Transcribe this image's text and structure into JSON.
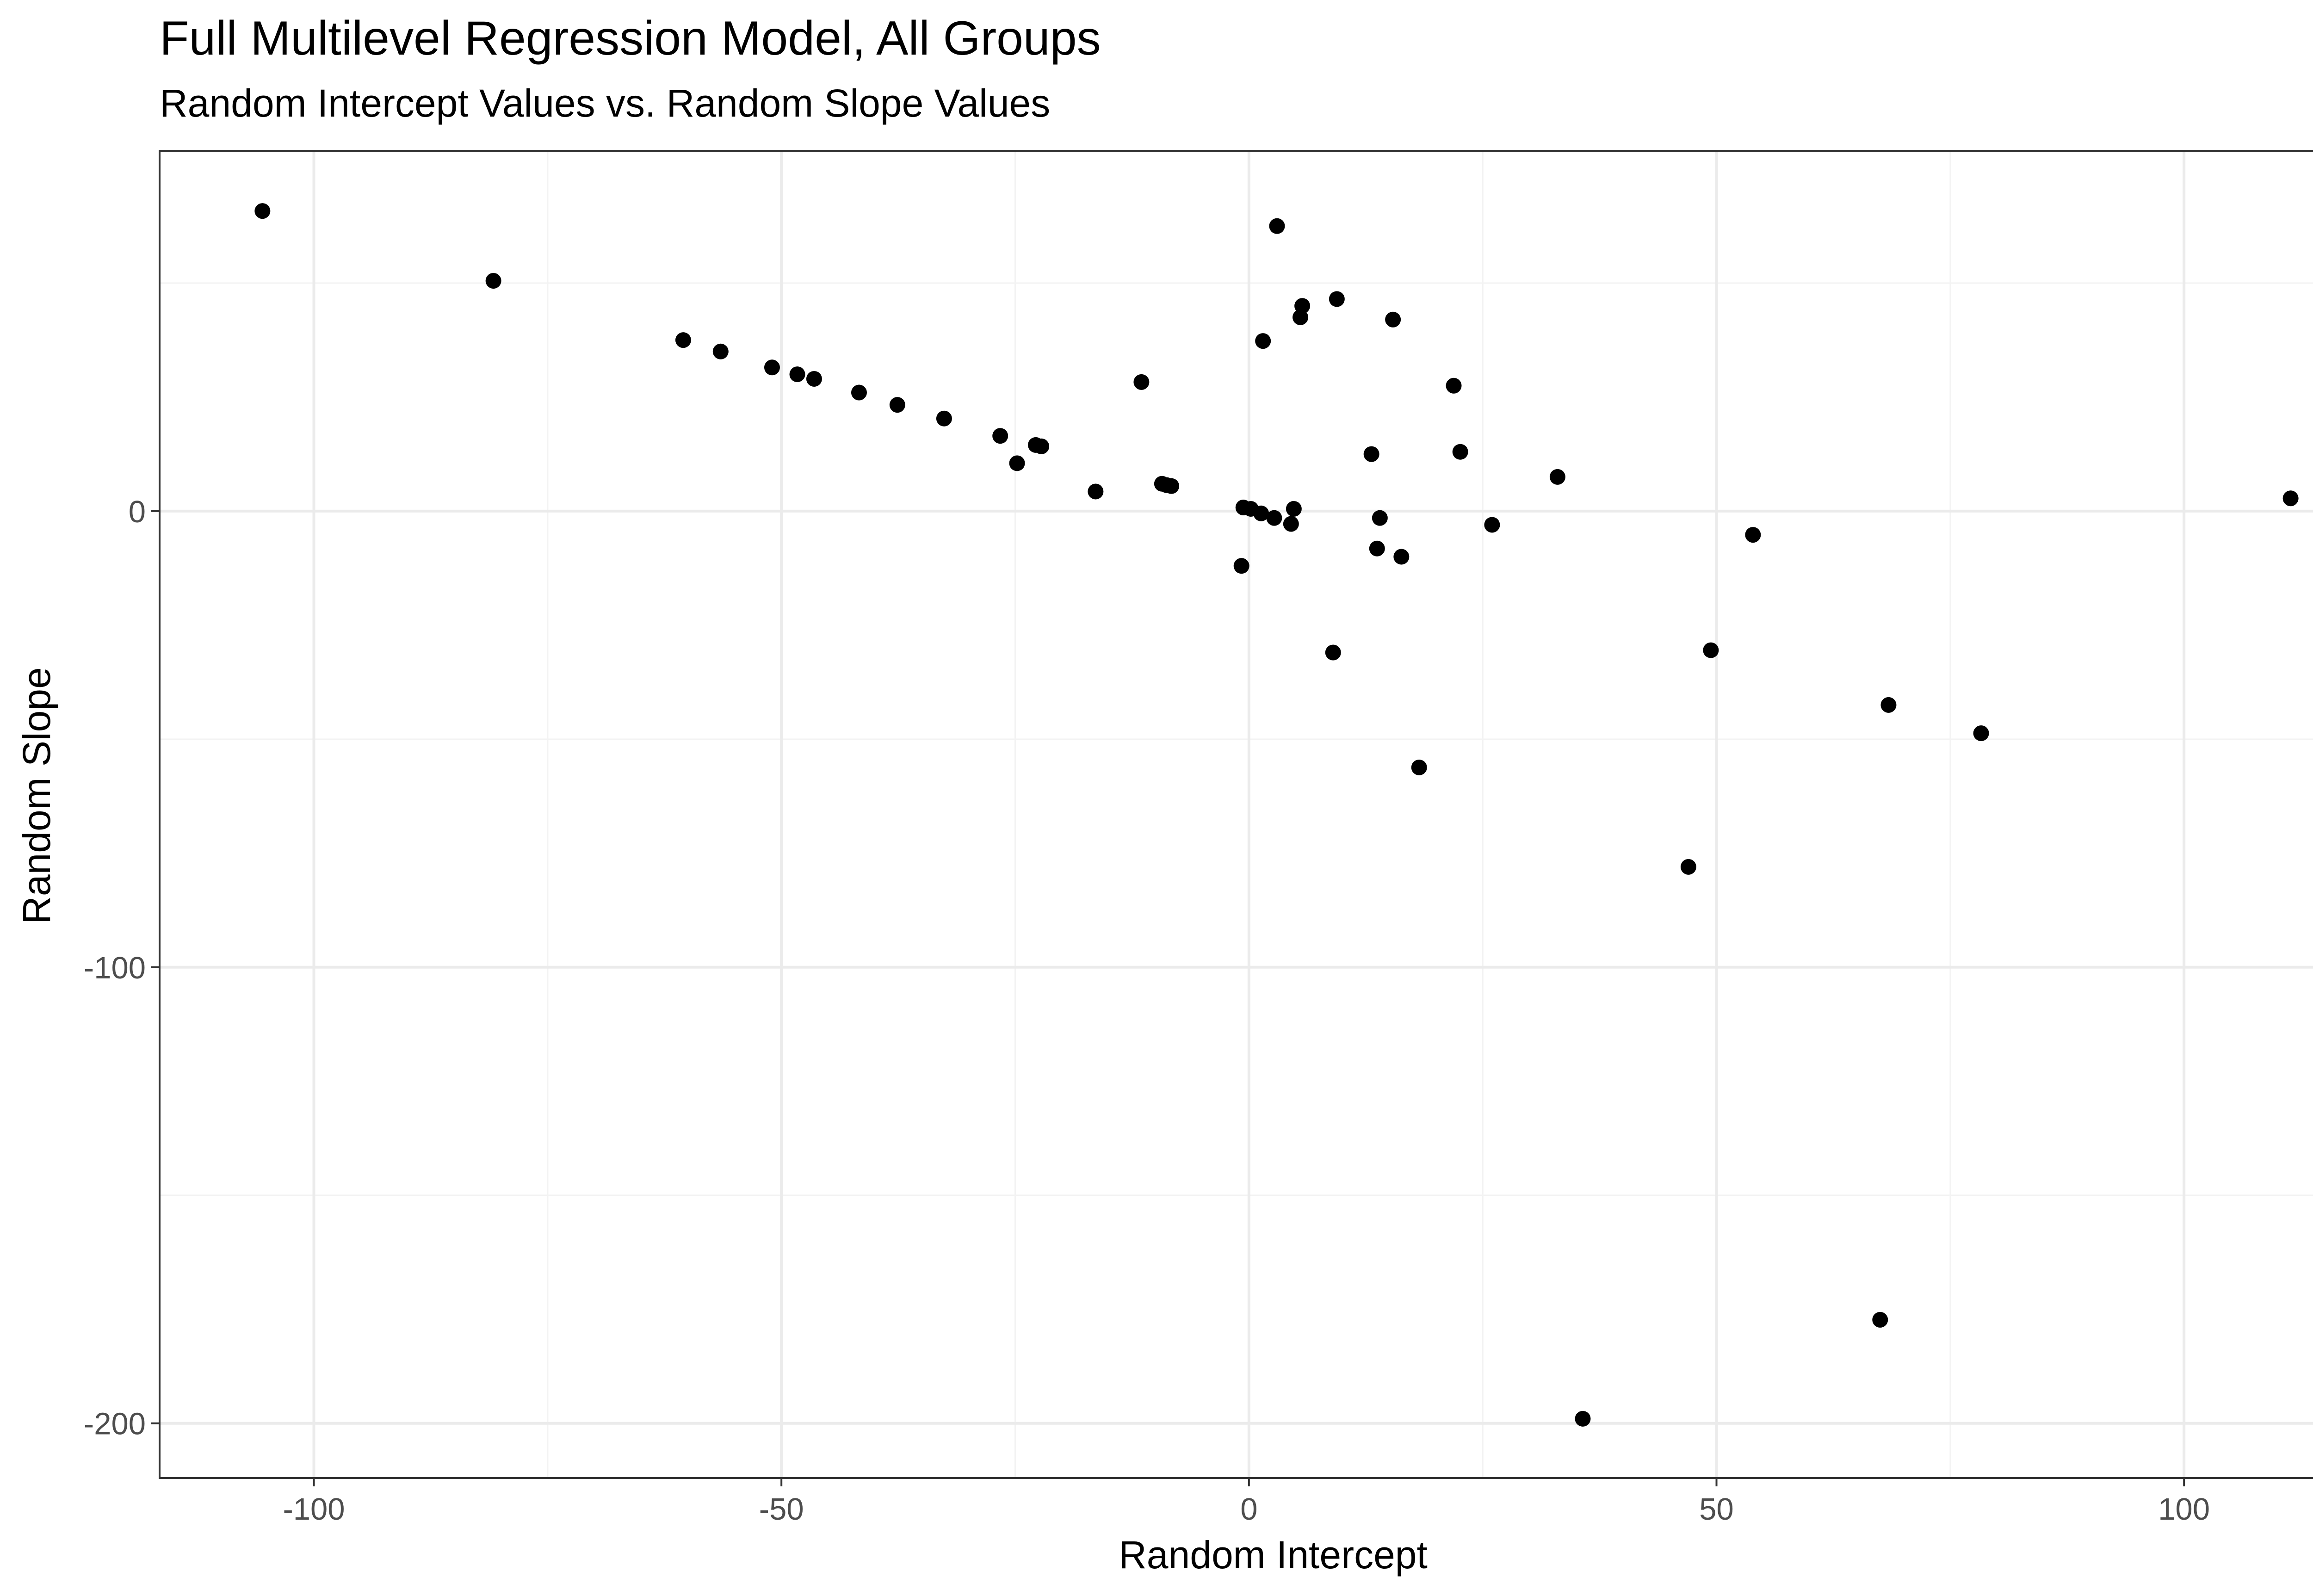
{
  "chart_data": {
    "type": "scatter",
    "title": "Full Multilevel Regression Model, All Groups",
    "subtitle": "Random Intercept Values vs. Random Slope Values",
    "xlabel": "Random Intercept",
    "ylabel": "Random Slope",
    "xlim": [
      -116.5,
      122.5
    ],
    "ylim": [
      -212,
      79
    ],
    "x_ticks": [
      -100,
      -50,
      0,
      50,
      100
    ],
    "x_tick_labels": [
      "-100",
      "-50",
      "0",
      "50",
      "100"
    ],
    "x_minor_ticks": [
      -75,
      -25,
      25,
      75
    ],
    "y_ticks": [
      -200,
      -100,
      0
    ],
    "y_tick_labels": [
      "-200",
      "-100",
      "0"
    ],
    "y_minor_ticks": [
      -150,
      -50,
      50
    ],
    "grid": true,
    "legend": "none",
    "theme": {
      "panel_border": "#333333",
      "grid_major": "#ebebeb",
      "grid_minor": "#f3f3f3",
      "point_color": "#000000",
      "tick_color": "#333333",
      "tick_label_color": "#4d4d4d"
    },
    "points": [
      {
        "x": -105.5,
        "y": 65.8
      },
      {
        "x": -80.8,
        "y": 50.5
      },
      {
        "x": -60.5,
        "y": 37.5
      },
      {
        "x": -56.5,
        "y": 35.0
      },
      {
        "x": -51.0,
        "y": 31.5
      },
      {
        "x": -48.3,
        "y": 30.0
      },
      {
        "x": -46.5,
        "y": 29.0
      },
      {
        "x": -41.7,
        "y": 26.0
      },
      {
        "x": -37.6,
        "y": 23.3
      },
      {
        "x": -32.6,
        "y": 20.3
      },
      {
        "x": -26.6,
        "y": 16.5
      },
      {
        "x": -24.8,
        "y": 10.5
      },
      {
        "x": -22.8,
        "y": 14.5
      },
      {
        "x": -22.2,
        "y": 14.2
      },
      {
        "x": -16.4,
        "y": 4.3
      },
      {
        "x": -11.5,
        "y": 28.3
      },
      {
        "x": -9.3,
        "y": 6.0
      },
      {
        "x": -8.8,
        "y": 5.7
      },
      {
        "x": -8.3,
        "y": 5.5
      },
      {
        "x": -0.6,
        "y": 0.8
      },
      {
        "x": -0.8,
        "y": -12.0
      },
      {
        "x": 0.2,
        "y": 0.5
      },
      {
        "x": 1.3,
        "y": -0.5
      },
      {
        "x": 1.5,
        "y": 37.3
      },
      {
        "x": 2.7,
        "y": -1.5
      },
      {
        "x": 3.0,
        "y": 62.5
      },
      {
        "x": 4.5,
        "y": -2.8
      },
      {
        "x": 4.8,
        "y": 0.5
      },
      {
        "x": 5.5,
        "y": 42.5
      },
      {
        "x": 5.7,
        "y": 45.0
      },
      {
        "x": 9.0,
        "y": -31.0
      },
      {
        "x": 9.4,
        "y": 46.5
      },
      {
        "x": 13.1,
        "y": 12.5
      },
      {
        "x": 13.7,
        "y": -8.2
      },
      {
        "x": 14.0,
        "y": -1.5
      },
      {
        "x": 15.4,
        "y": 42.0
      },
      {
        "x": 16.3,
        "y": -10.0
      },
      {
        "x": 18.2,
        "y": -56.2
      },
      {
        "x": 21.9,
        "y": 27.5
      },
      {
        "x": 22.6,
        "y": 13.0
      },
      {
        "x": 26.0,
        "y": -3.0
      },
      {
        "x": 33.0,
        "y": 7.5
      },
      {
        "x": 35.7,
        "y": -199.0
      },
      {
        "x": 47.0,
        "y": -78.0
      },
      {
        "x": 49.4,
        "y": -30.5
      },
      {
        "x": 53.9,
        "y": -5.2
      },
      {
        "x": 67.5,
        "y": -177.3
      },
      {
        "x": 68.4,
        "y": -42.5
      },
      {
        "x": 78.3,
        "y": -48.7
      },
      {
        "x": 111.4,
        "y": 2.8
      }
    ]
  }
}
